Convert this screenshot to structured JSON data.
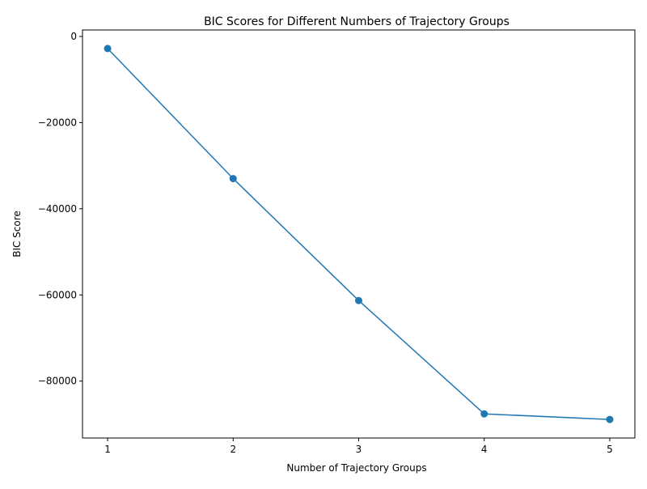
{
  "chart_data": {
    "type": "line",
    "title": "BIC Scores for Different Numbers of Trajectory Groups",
    "xlabel": "Number of Trajectory Groups",
    "ylabel": "BIC Score",
    "x": [
      1,
      2,
      3,
      4,
      5
    ],
    "series": [
      {
        "values": [
          -2800,
          -33000,
          -61300,
          -87600,
          -88900
        ],
        "color": "#1f77b4",
        "marker": "circle"
      }
    ],
    "xticks": [
      "1",
      "2",
      "3",
      "4",
      "5"
    ],
    "yticks": [
      {
        "value": 0,
        "label": "0"
      },
      {
        "value": -20000,
        "label": "−20000"
      },
      {
        "value": -40000,
        "label": "−40000"
      },
      {
        "value": -60000,
        "label": "−60000"
      },
      {
        "value": -80000,
        "label": "−80000"
      }
    ],
    "xlim": [
      0.8,
      5.2
    ],
    "ylim": [
      -93200,
      1500
    ],
    "grid": false,
    "legend": "none"
  }
}
